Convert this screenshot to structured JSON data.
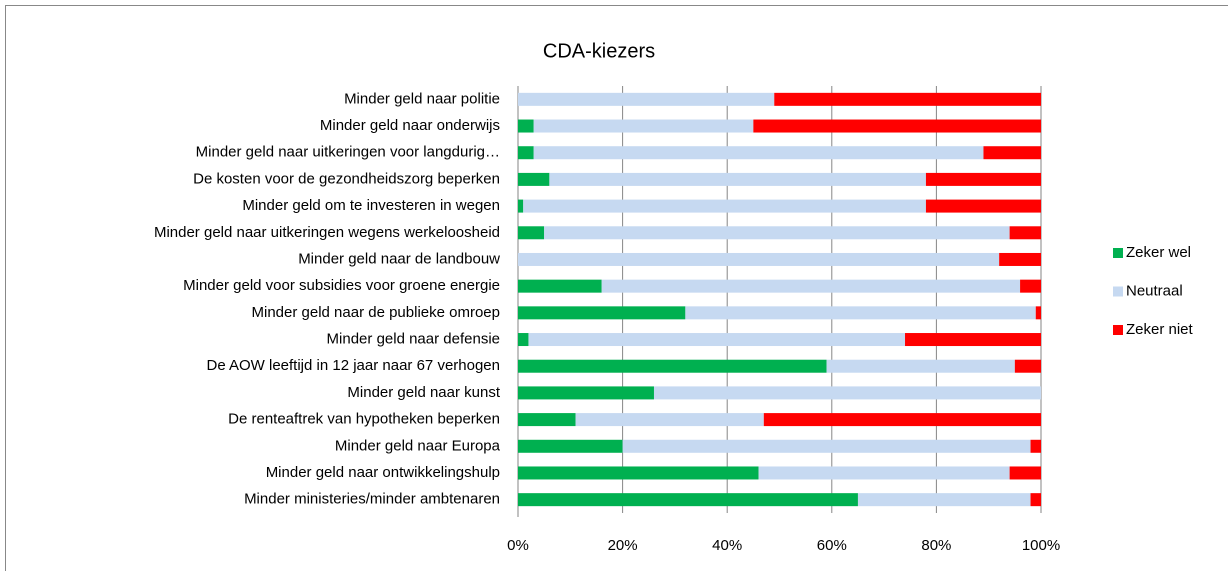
{
  "chart_data": {
    "type": "stacked_bar_horizontal",
    "title": "CDA-kiezers",
    "categories": [
      "Minder geld naar politie",
      "Minder geld naar onderwijs",
      "Minder geld naar uitkeringen voor langdurig…",
      "De kosten voor de gezondheidszorg beperken",
      "Minder geld om te investeren in wegen",
      "Minder geld naar uitkeringen wegens werkeloosheid",
      "Minder geld naar de landbouw",
      "Minder geld voor subsidies voor groene energie",
      "Minder geld naar de publieke omroep",
      "Minder geld naar defensie",
      "De AOW leeftijd in 12 jaar naar 67 verhogen",
      "Minder geld naar kunst",
      "De renteaftrek van hypotheken beperken",
      "Minder geld naar Europa",
      "Minder geld naar ontwikkelingshulp",
      "Minder ministeries/minder ambtenaren"
    ],
    "series": [
      {
        "name": "Zeker wel",
        "color": "#00b050",
        "values": [
          0,
          3,
          3,
          6,
          1,
          5,
          0,
          16,
          32,
          2,
          59,
          26,
          11,
          20,
          46,
          65
        ]
      },
      {
        "name": "Neutraal",
        "color": "#c6d9f1",
        "values": [
          49,
          42,
          86,
          72,
          77,
          89,
          92,
          80,
          67,
          72,
          36,
          74,
          36,
          78,
          48,
          33
        ]
      },
      {
        "name": "Zeker niet",
        "color": "#ff0000",
        "values": [
          51,
          55,
          11,
          22,
          22,
          6,
          8,
          4,
          1,
          26,
          5,
          0,
          53,
          2,
          6,
          2
        ]
      }
    ],
    "xlim": [
      0,
      100
    ],
    "xticks": [
      {
        "value": 0,
        "label": "0%"
      },
      {
        "value": 20,
        "label": "20%"
      },
      {
        "value": 40,
        "label": "40%"
      },
      {
        "value": 60,
        "label": "60%"
      },
      {
        "value": 80,
        "label": "80%"
      },
      {
        "value": 100,
        "label": "100%"
      }
    ],
    "grid": true,
    "legend": "right"
  }
}
